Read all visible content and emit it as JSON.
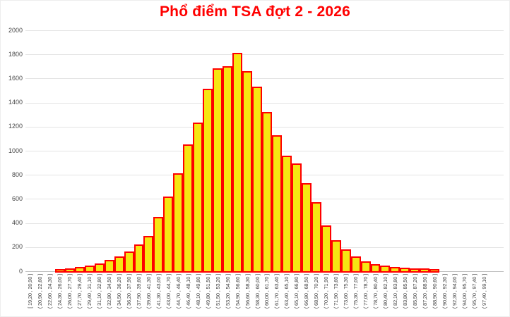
{
  "chart_data": {
    "type": "bar",
    "title": "Phổ điểm TSA đợt 2 - 2026",
    "title_color": "#FF0000",
    "xlabel": "",
    "ylabel": "",
    "ylim": [
      0,
      2000
    ],
    "yticks": [
      0,
      200,
      400,
      600,
      800,
      1000,
      1200,
      1400,
      1600,
      1800,
      2000
    ],
    "grid": "horizontal",
    "legend": "none",
    "bar_fill_color": "#F6E612",
    "bar_border_color": "#FF0000",
    "gridline_color": "#E3E3E3",
    "axis_line_color": "#BFBFBF",
    "tick_label_color": "#474747",
    "categories": [
      "[ 19,20 , 20,90 ]",
      "( 20,90 , 22,60 ]",
      "( 22,60 , 24,30 ]",
      "( 24,30 , 26,00 ]",
      "( 26,00 , 27,70 ]",
      "( 27,70 , 29,40 ]",
      "( 29,40 , 31,10 ]",
      "( 31,10 , 32,80 ]",
      "( 32,80 , 34,50 ]",
      "( 34,50 , 36,20 ]",
      "( 36,20 , 37,90 ]",
      "( 37,90 , 39,60 ]",
      "( 39,60 , 41,30 ]",
      "( 41,30 , 43,00 ]",
      "( 43,00 , 44,70 ]",
      "( 44,70 , 46,40 ]",
      "( 46,40 , 48,10 ]",
      "( 48,10 , 49,80 ]",
      "( 49,80 , 51,50 ]",
      "( 51,50 , 53,20 ]",
      "( 53,20 , 54,90 ]",
      "( 54,90 , 56,60 ]",
      "( 56,60 , 58,30 ]",
      "( 58,30 , 60,00 ]",
      "( 60,00 , 61,70 ]",
      "( 61,70 , 63,40 ]",
      "( 63,40 , 65,10 ]",
      "( 65,10 , 66,80 ]",
      "( 66,80 , 68,50 ]",
      "( 68,50 , 70,20 ]",
      "( 70,20 , 71,90 ]",
      "( 71,90 , 73,60 ]",
      "( 73,60 , 75,30 ]",
      "( 75,30 , 77,00 ]",
      "( 77,00 , 78,70 ]",
      "( 78,70 , 80,40 ]",
      "( 80,40 , 82,10 ]",
      "( 82,10 , 83,80 ]",
      "( 83,80 , 85,50 ]",
      "( 85,50 , 87,20 ]",
      "( 87,20 , 88,90 ]",
      "( 88,90 , 90,60 ]",
      "( 90,60 , 92,30 ]",
      "( 92,30 , 94,00 ]",
      "( 94,00 , 95,70 ]",
      "( 95,70 , 97,40 ]",
      "( 97,40 , 99,10 ]"
    ],
    "values": [
      0,
      0,
      0,
      6,
      10,
      22,
      38,
      55,
      80,
      112,
      150,
      210,
      280,
      440,
      610,
      800,
      1040,
      1220,
      1505,
      1670,
      1690,
      1800,
      1650,
      1520,
      1310,
      1115,
      945,
      885,
      720,
      560,
      370,
      245,
      170,
      110,
      70,
      48,
      35,
      22,
      16,
      12,
      10,
      4,
      0,
      0,
      0,
      0,
      0
    ]
  }
}
